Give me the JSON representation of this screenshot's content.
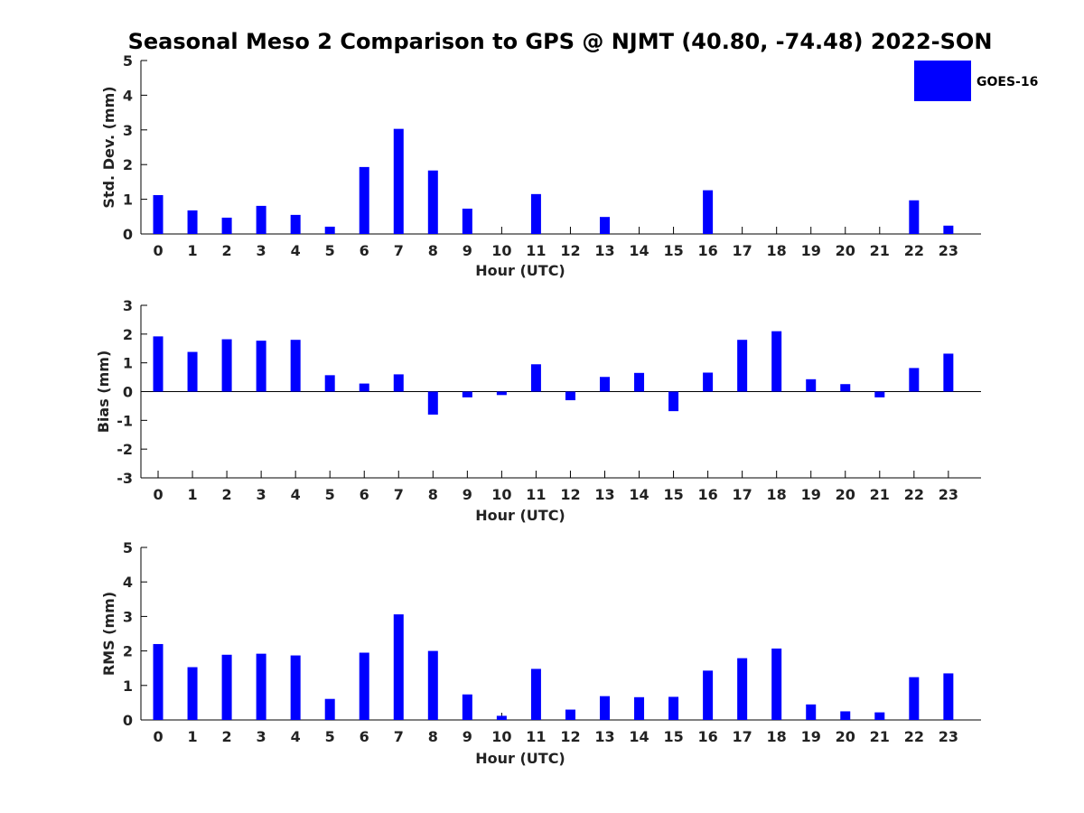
{
  "chart_data": [
    {
      "type": "bar",
      "title": "Seasonal Meso 2 Comparison to GPS @ NJMT (40.80, -74.48) 2022-SON",
      "xlabel": "Hour (UTC)",
      "ylabel": "Std. Dev. (mm)",
      "ylim": [
        0,
        5
      ],
      "yticks": [
        0,
        1,
        2,
        3,
        4,
        5
      ],
      "categories": [
        "0",
        "1",
        "2",
        "3",
        "4",
        "5",
        "6",
        "7",
        "8",
        "9",
        "10",
        "11",
        "12",
        "13",
        "14",
        "15",
        "16",
        "17",
        "18",
        "19",
        "20",
        "21",
        "22",
        "23"
      ],
      "series": [
        {
          "name": "GOES-16",
          "values": [
            1.12,
            0.68,
            0.47,
            0.81,
            0.55,
            0.21,
            1.93,
            3.03,
            1.83,
            0.73,
            null,
            1.15,
            null,
            0.49,
            null,
            null,
            1.26,
            null,
            null,
            null,
            null,
            null,
            0.97,
            0.24
          ]
        }
      ]
    },
    {
      "type": "bar",
      "xlabel": "Hour (UTC)",
      "ylabel": "Bias (mm)",
      "ylim": [
        -3,
        3
      ],
      "yticks": [
        -3,
        -2,
        -1,
        0,
        1,
        2,
        3
      ],
      "categories": [
        "0",
        "1",
        "2",
        "3",
        "4",
        "5",
        "6",
        "7",
        "8",
        "9",
        "10",
        "11",
        "12",
        "13",
        "14",
        "15",
        "16",
        "17",
        "18",
        "19",
        "20",
        "21",
        "22",
        "23"
      ],
      "series": [
        {
          "name": "GOES-16",
          "values": [
            1.92,
            1.38,
            1.82,
            1.77,
            1.8,
            0.57,
            0.28,
            0.6,
            -0.8,
            -0.2,
            -0.12,
            0.95,
            -0.3,
            0.51,
            0.65,
            -0.68,
            0.66,
            1.8,
            2.1,
            0.43,
            0.26,
            -0.2,
            0.82,
            1.32
          ]
        }
      ]
    },
    {
      "type": "bar",
      "xlabel": "Hour (UTC)",
      "ylabel": "RMS (mm)",
      "ylim": [
        0,
        5
      ],
      "yticks": [
        0,
        1,
        2,
        3,
        4,
        5
      ],
      "categories": [
        "0",
        "1",
        "2",
        "3",
        "4",
        "5",
        "6",
        "7",
        "8",
        "9",
        "10",
        "11",
        "12",
        "13",
        "14",
        "15",
        "16",
        "17",
        "18",
        "19",
        "20",
        "21",
        "22",
        "23"
      ],
      "series": [
        {
          "name": "GOES-16",
          "values": [
            2.2,
            1.53,
            1.89,
            1.92,
            1.87,
            0.61,
            1.95,
            3.06,
            2.0,
            0.74,
            0.12,
            1.48,
            0.3,
            0.69,
            0.66,
            0.67,
            1.43,
            1.79,
            2.07,
            0.45,
            0.25,
            0.22,
            1.24,
            1.35
          ]
        }
      ]
    }
  ],
  "legend": {
    "label": "GOES-16",
    "color": "#0000ff",
    "placement": "top-right"
  },
  "colors": {
    "bar": "#0000ff",
    "axis": "#000000",
    "text": "#222222"
  }
}
